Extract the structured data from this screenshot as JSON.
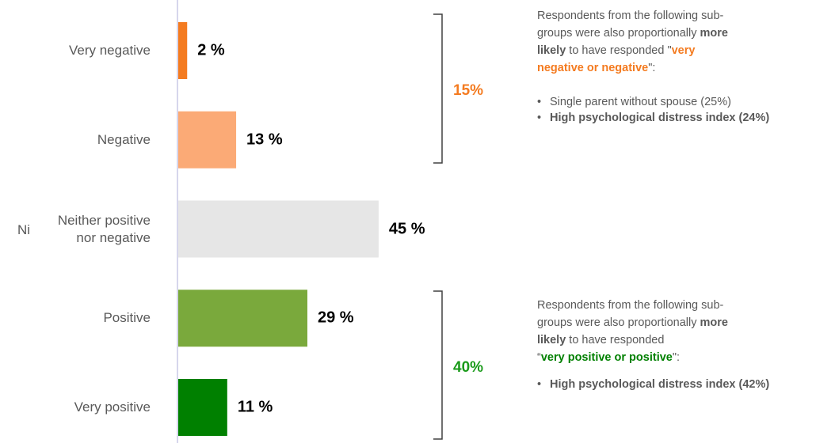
{
  "chart_data": {
    "type": "bar",
    "orientation": "horizontal",
    "categories": [
      "Very negative",
      "Negative",
      "Neither positive nor negative",
      "Positive",
      "Very positive"
    ],
    "values": [
      2,
      13,
      45,
      29,
      11
    ],
    "value_labels": [
      "2 %",
      "13 %",
      "45 %",
      "29 %",
      "11 %"
    ],
    "colors": [
      "#f47b20",
      "#fbaa76",
      "#e6e6e6",
      "#7aa93c",
      "#008000"
    ],
    "brackets": [
      {
        "label": "15%",
        "color": "#f47b20"
      },
      {
        "label": "40%",
        "color": "#1a9a1a"
      }
    ],
    "side_text": "Ni",
    "notes": [
      {
        "lines": [
          [
            {
              "text": "Respondents from the following sub-"
            }
          ],
          [
            {
              "text": "groups were also proportionally "
            },
            {
              "text": "more",
              "bold": true
            }
          ],
          [
            {
              "text": "likely",
              "bold": true
            },
            {
              "text": " to have responded \""
            },
            {
              "text": "very",
              "bold": true,
              "color": "#f47b20"
            }
          ],
          [
            {
              "text": "negative or negative",
              "bold": true,
              "color": "#f47b20"
            },
            {
              "text": "\":"
            }
          ]
        ],
        "bullets": [
          {
            "text": "Single parent without spouse (25%)"
          },
          {
            "text": "High psychological distress index (24%)",
            "bold": true
          }
        ]
      },
      {
        "lines": [
          [
            {
              "text": "Respondents from the following sub-"
            }
          ],
          [
            {
              "text": "groups were also proportionally "
            },
            {
              "text": "more",
              "bold": true
            }
          ],
          [
            {
              "text": "likely",
              "bold": true
            },
            {
              "text": " to have responded"
            }
          ],
          [
            {
              "text": "“"
            },
            {
              "text": "very positive or positive",
              "bold": true,
              "color": "#008000"
            },
            {
              "text": "\":"
            }
          ]
        ],
        "bullets": [
          {
            "text": "High psychological distress index (42%)",
            "bold": true
          }
        ]
      }
    ]
  }
}
